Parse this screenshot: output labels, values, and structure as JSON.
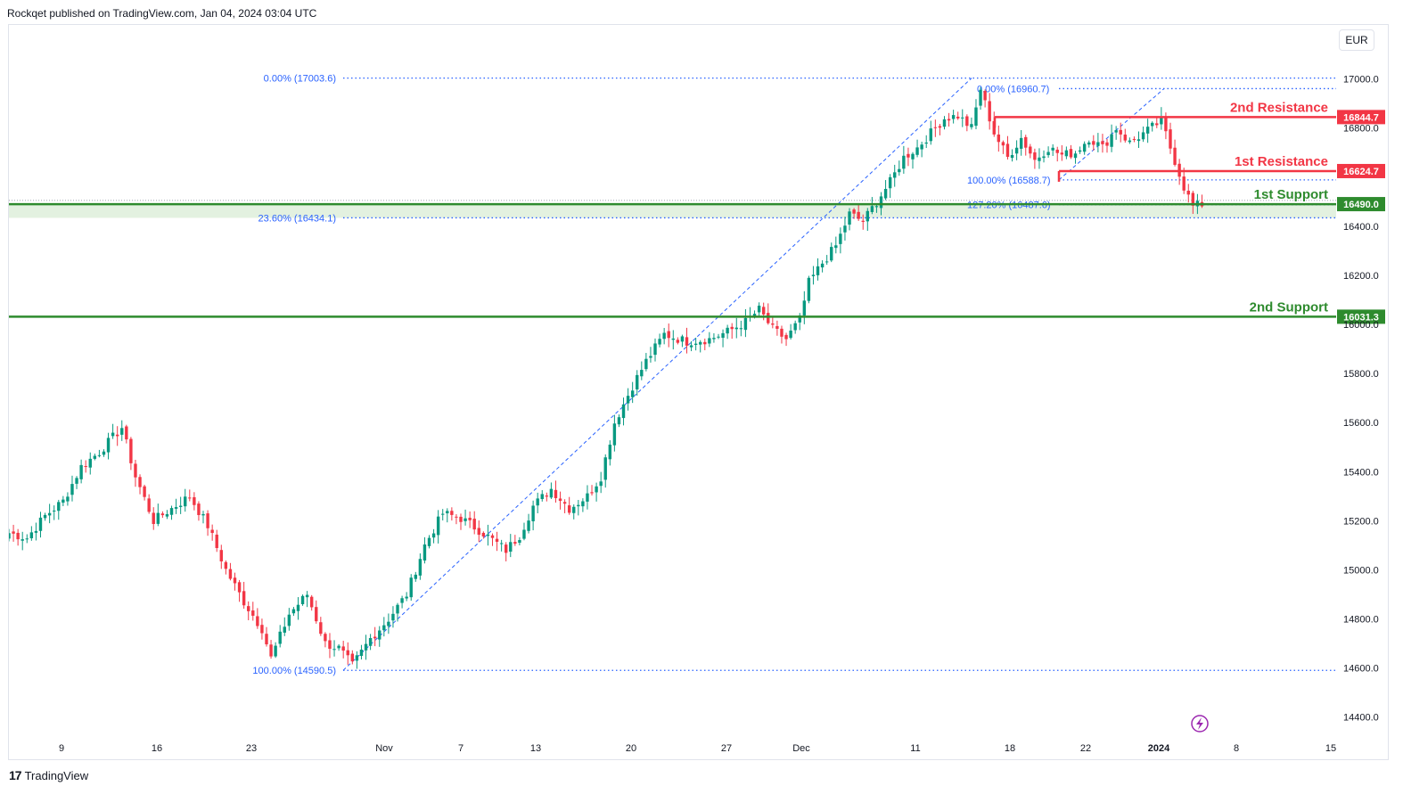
{
  "header": {
    "text": "Rockqet published on TradingView.com, Jan 04, 2024 03:04 UTC"
  },
  "currency": "EUR",
  "footer": {
    "logo_icon": "tradingview-logo-icon",
    "brand": "TradingView"
  },
  "colors": {
    "up": "#089981",
    "down": "#f23645",
    "resistance": "#f23645",
    "support": "#2e8b2e",
    "fib": "#2962ff",
    "zone": "#e3f1e0"
  },
  "chart_data": {
    "type": "candlestick",
    "instrument_currency": "EUR",
    "ylim": [
      14330,
      17220
    ],
    "yticks": [
      14400,
      14600,
      14800,
      15000,
      15200,
      15400,
      15600,
      15800,
      16000,
      16200,
      16400,
      16800,
      17000
    ],
    "ytick_labels": [
      "14400.0",
      "14600.0",
      "14800.0",
      "15000.0",
      "15200.0",
      "15400.0",
      "15600.0",
      "15800.0",
      "16000.0",
      "16200.0",
      "16400.0",
      "16800.0",
      "17000.0"
    ],
    "xticks": [
      {
        "label": "9",
        "bold": false
      },
      {
        "label": "16",
        "bold": false
      },
      {
        "label": "23",
        "bold": false
      },
      {
        "label": "Nov",
        "bold": false
      },
      {
        "label": "7",
        "bold": false
      },
      {
        "label": "13",
        "bold": false
      },
      {
        "label": "20",
        "bold": false
      },
      {
        "label": "27",
        "bold": false
      },
      {
        "label": "Dec",
        "bold": false
      },
      {
        "label": "11",
        "bold": false
      },
      {
        "label": "18",
        "bold": false
      },
      {
        "label": "22",
        "bold": false
      },
      {
        "label": "2024",
        "bold": true
      },
      {
        "label": "8",
        "bold": false
      },
      {
        "label": "15",
        "bold": false
      }
    ],
    "levels": [
      {
        "name": "2nd Resistance",
        "price": 16844.7,
        "label": "16844.7",
        "kind": "resistance"
      },
      {
        "name": "1st Resistance",
        "price": 16624.7,
        "label": "16624.7",
        "kind": "resistance"
      },
      {
        "name": "1st Support",
        "price": 16490.0,
        "label": "16490.0",
        "kind": "support"
      },
      {
        "name": "2nd Support",
        "price": 16031.3,
        "label": "16031.3",
        "kind": "support"
      }
    ],
    "fib_labels": [
      {
        "text": "0.00% (17003.6)",
        "price": 17003.6
      },
      {
        "text": "23.60% (16434.1)",
        "price": 16434.1
      },
      {
        "text": "100.00% (14590.5)",
        "price": 14590.5
      },
      {
        "text": "0.00% (16960.7)",
        "price": 16960.7
      },
      {
        "text": "100.00% (16588.7)",
        "price": 16588.7
      },
      {
        "text": "127.20% (16487.6)",
        "price": 16487.6
      }
    ],
    "anchors": [
      [
        0,
        15150
      ],
      [
        4,
        15130
      ],
      [
        8,
        15220
      ],
      [
        12,
        15280
      ],
      [
        16,
        15420
      ],
      [
        20,
        15480
      ],
      [
        25,
        15580
      ],
      [
        28,
        15380
      ],
      [
        32,
        15200
      ],
      [
        36,
        15250
      ],
      [
        40,
        15300
      ],
      [
        44,
        15180
      ],
      [
        48,
        15000
      ],
      [
        52,
        14870
      ],
      [
        56,
        14760
      ],
      [
        58,
        14640
      ],
      [
        62,
        14820
      ],
      [
        66,
        14900
      ],
      [
        70,
        14700
      ],
      [
        73,
        14680
      ],
      [
        76,
        14610
      ],
      [
        80,
        14720
      ],
      [
        84,
        14800
      ],
      [
        88,
        14900
      ],
      [
        92,
        15100
      ],
      [
        96,
        15230
      ],
      [
        100,
        15210
      ],
      [
        105,
        15150
      ],
      [
        110,
        15080
      ],
      [
        113,
        15140
      ],
      [
        116,
        15260
      ],
      [
        120,
        15330
      ],
      [
        124,
        15250
      ],
      [
        128,
        15300
      ],
      [
        131,
        15380
      ],
      [
        134,
        15600
      ],
      [
        138,
        15750
      ],
      [
        141,
        15850
      ],
      [
        145,
        15960
      ],
      [
        150,
        15930
      ],
      [
        155,
        15940
      ],
      [
        159,
        15970
      ],
      [
        163,
        16010
      ],
      [
        166,
        16060
      ],
      [
        169,
        15980
      ],
      [
        172,
        15940
      ],
      [
        175,
        16020
      ],
      [
        177,
        16170
      ],
      [
        180,
        16250
      ],
      [
        183,
        16320
      ],
      [
        186,
        16450
      ],
      [
        189,
        16420
      ],
      [
        192,
        16500
      ],
      [
        195,
        16580
      ],
      [
        198,
        16680
      ],
      [
        201,
        16720
      ],
      [
        204,
        16780
      ],
      [
        207,
        16840
      ],
      [
        210,
        16850
      ],
      [
        213,
        16800
      ],
      [
        215,
        16960
      ],
      [
        218,
        16780
      ],
      [
        221,
        16680
      ],
      [
        224,
        16760
      ],
      [
        227,
        16670
      ],
      [
        230,
        16720
      ],
      [
        233,
        16690
      ],
      [
        236,
        16700
      ],
      [
        239,
        16760
      ],
      [
        242,
        16720
      ],
      [
        245,
        16800
      ],
      [
        248,
        16740
      ],
      [
        252,
        16790
      ],
      [
        255,
        16830
      ],
      [
        257,
        16720
      ],
      [
        260,
        16560
      ],
      [
        262,
        16480
      ],
      [
        264,
        16490
      ]
    ]
  }
}
